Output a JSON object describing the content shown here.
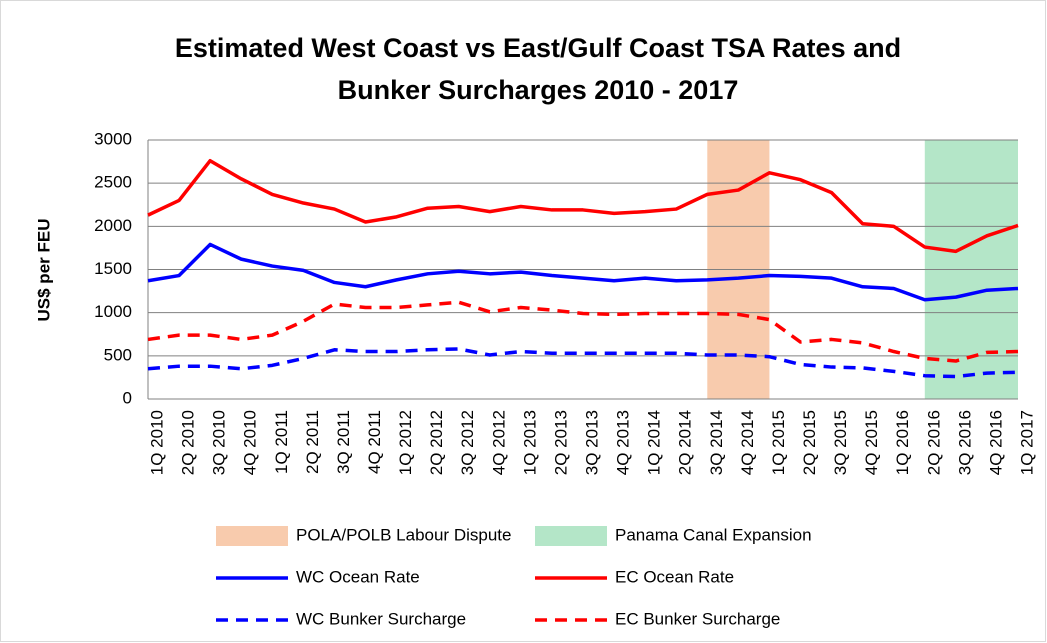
{
  "chart_data": {
    "type": "line",
    "title": [
      "Estimated West Coast vs East/Gulf Coast TSA Rates and",
      "Bunker Surcharges 2010 - 2017"
    ],
    "y_label": "US$ per FEU",
    "categories": [
      "1Q 2010",
      "2Q 2010",
      "3Q 2010",
      "4Q 2010",
      "1Q 2011",
      "2Q 2011",
      "3Q 2011",
      "4Q 2011",
      "1Q 2012",
      "2Q 2012",
      "3Q 2012",
      "4Q 2012",
      "1Q 2013",
      "2Q 2013",
      "3Q 2013",
      "4Q 2013",
      "1Q 2014",
      "2Q 2014",
      "3Q 2014",
      "4Q 2014",
      "1Q 2015",
      "2Q 2015",
      "3Q 2015",
      "4Q 2015",
      "1Q 2016",
      "2Q 2016",
      "3Q 2016",
      "4Q 2016",
      "1Q 2017"
    ],
    "bands": [
      {
        "name": "POLA/POLB Labour Dispute",
        "color": "#f8cbad",
        "from": "3Q 2014",
        "to": "1Q 2015"
      },
      {
        "name": "Panama Canal Expansion",
        "color": "#b4e6c8",
        "from": "2Q 2016",
        "to": "1Q 2017"
      }
    ],
    "series": [
      {
        "name": "WC Ocean Rate",
        "color": "#0000ff",
        "dashed": false,
        "values": [
          1370,
          1430,
          1790,
          1620,
          1540,
          1490,
          1350,
          1300,
          1380,
          1450,
          1480,
          1450,
          1470,
          1430,
          1400,
          1370,
          1400,
          1370,
          1380,
          1400,
          1430,
          1420,
          1400,
          1300,
          1280,
          1150,
          1180,
          1260,
          1280
        ]
      },
      {
        "name": "EC Ocean Rate",
        "color": "#ff0000",
        "dashed": false,
        "values": [
          2130,
          2300,
          2760,
          2550,
          2370,
          2270,
          2200,
          2050,
          2110,
          2210,
          2230,
          2170,
          2230,
          2190,
          2190,
          2150,
          2170,
          2200,
          2370,
          2420,
          2620,
          2540,
          2390,
          2030,
          2000,
          1760,
          1710,
          1890,
          2010
        ]
      },
      {
        "name": "WC Bunker Surcharge",
        "color": "#0000ff",
        "dashed": true,
        "values": [
          350,
          380,
          380,
          350,
          390,
          470,
          570,
          550,
          550,
          570,
          580,
          510,
          550,
          530,
          530,
          530,
          530,
          530,
          510,
          510,
          490,
          400,
          370,
          360,
          320,
          270,
          260,
          300,
          310
        ]
      },
      {
        "name": "EC Bunker Surcharge",
        "color": "#ff0000",
        "dashed": true,
        "values": [
          690,
          740,
          740,
          690,
          740,
          900,
          1100,
          1060,
          1060,
          1090,
          1120,
          1010,
          1060,
          1030,
          990,
          980,
          990,
          990,
          990,
          980,
          920,
          660,
          690,
          650,
          550,
          470,
          440,
          540,
          550
        ]
      }
    ],
    "ylim": [
      0,
      3000
    ],
    "yticks": [
      0,
      500,
      1000,
      1500,
      2000,
      2500,
      3000
    ],
    "grid": true
  }
}
